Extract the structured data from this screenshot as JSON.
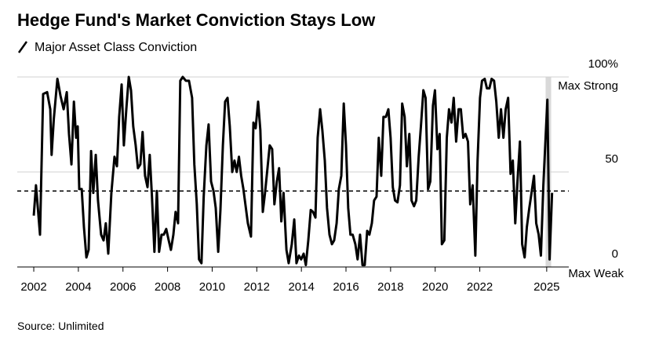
{
  "chart_data": {
    "type": "line",
    "title": "Hedge Fund's Market Conviction Stays Low",
    "source": "Source: Unlimited",
    "annotations": [
      "Max Strong",
      "Max Weak"
    ],
    "x": [
      2002.0,
      2002.1,
      2002.28,
      2002.42,
      2002.6,
      2002.74,
      2002.8,
      2002.9,
      2003.06,
      2003.2,
      2003.34,
      2003.48,
      2003.58,
      2003.69,
      2003.8,
      2003.9,
      2003.97,
      2004.04,
      2004.15,
      2004.25,
      2004.36,
      2004.46,
      2004.57,
      2004.67,
      2004.78,
      2004.88,
      2005.02,
      2005.13,
      2005.23,
      2005.34,
      2005.48,
      2005.62,
      2005.73,
      2005.83,
      2005.94,
      2006.04,
      2006.15,
      2006.26,
      2006.36,
      2006.46,
      2006.57,
      2006.67,
      2006.78,
      2006.88,
      2006.99,
      2007.1,
      2007.2,
      2007.3,
      2007.41,
      2007.52,
      2007.62,
      2007.73,
      2007.83,
      2007.94,
      2008.05,
      2008.15,
      2008.26,
      2008.36,
      2008.47,
      2008.57,
      2008.68,
      2008.82,
      2008.96,
      2009.1,
      2009.2,
      2009.31,
      2009.41,
      2009.52,
      2009.62,
      2009.74,
      2009.84,
      2009.95,
      2010.06,
      2010.16,
      2010.27,
      2010.37,
      2010.48,
      2010.58,
      2010.69,
      2010.79,
      2010.9,
      2011.0,
      2011.1,
      2011.2,
      2011.3,
      2011.4,
      2011.5,
      2011.6,
      2011.74,
      2011.85,
      2011.95,
      2012.06,
      2012.16,
      2012.27,
      2012.37,
      2012.48,
      2012.58,
      2012.69,
      2012.79,
      2012.9,
      2013.0,
      2013.1,
      2013.2,
      2013.33,
      2013.43,
      2013.57,
      2013.68,
      2013.78,
      2013.89,
      2013.99,
      2014.1,
      2014.2,
      2014.31,
      2014.42,
      2014.52,
      2014.63,
      2014.73,
      2014.84,
      2014.94,
      2015.05,
      2015.15,
      2015.26,
      2015.37,
      2015.47,
      2015.58,
      2015.68,
      2015.79,
      2015.9,
      2016.0,
      2016.1,
      2016.2,
      2016.3,
      2016.42,
      2016.52,
      2016.63,
      2016.74,
      2016.84,
      2016.95,
      2017.05,
      2017.16,
      2017.26,
      2017.37,
      2017.47,
      2017.58,
      2017.68,
      2017.79,
      2017.9,
      2018.0,
      2018.1,
      2018.2,
      2018.31,
      2018.42,
      2018.52,
      2018.63,
      2018.73,
      2018.84,
      2018.94,
      2019.05,
      2019.15,
      2019.26,
      2019.36,
      2019.47,
      2019.57,
      2019.68,
      2019.78,
      2019.9,
      2019.99,
      2020.1,
      2020.2,
      2020.3,
      2020.41,
      2020.52,
      2020.62,
      2020.73,
      2020.83,
      2020.94,
      2021.05,
      2021.15,
      2021.26,
      2021.36,
      2021.47,
      2021.57,
      2021.68,
      2021.8,
      2021.9,
      2022.01,
      2022.1,
      2022.22,
      2022.32,
      2022.43,
      2022.53,
      2022.64,
      2022.74,
      2022.85,
      2022.95,
      2023.06,
      2023.16,
      2023.27,
      2023.38,
      2023.48,
      2023.59,
      2023.69,
      2023.8,
      2023.9,
      2024.01,
      2024.11,
      2024.22,
      2024.32,
      2024.43,
      2024.53,
      2024.64,
      2024.74,
      2024.85,
      2024.95,
      2025.03,
      2025.13,
      2025.24
    ],
    "series": [
      {
        "name": "Major Asset Class Conviction",
        "color": "#000000",
        "values": [
          27,
          43,
          17,
          91,
          92,
          83,
          59,
          78,
          99,
          90,
          83,
          92,
          70,
          54,
          87,
          68,
          74,
          41,
          41,
          21,
          5,
          9,
          61,
          39,
          59,
          35,
          17,
          14,
          23,
          7,
          39,
          58,
          53,
          79,
          96,
          64,
          83,
          100,
          93,
          74,
          64,
          52,
          54,
          71,
          48,
          42,
          59,
          37,
          8,
          40,
          8,
          17,
          17,
          20,
          14,
          9,
          17,
          29,
          23,
          98,
          100,
          98,
          98,
          89,
          54,
          33,
          4,
          2,
          37,
          64,
          75,
          45,
          40,
          31,
          8,
          30,
          64,
          87,
          89,
          74,
          50,
          56,
          50,
          58,
          48,
          41,
          32,
          23,
          16,
          76,
          73,
          87,
          72,
          29,
          39,
          52,
          64,
          62,
          33,
          45,
          52,
          24,
          39,
          9,
          2,
          12,
          25,
          2,
          6,
          4,
          7,
          1,
          14,
          30,
          29,
          26,
          68,
          83,
          72,
          56,
          31,
          17,
          12,
          14,
          23,
          41,
          48,
          86,
          64,
          31,
          17,
          17,
          12,
          4,
          17,
          1,
          1,
          19,
          17,
          23,
          35,
          37,
          68,
          48,
          79,
          79,
          83,
          68,
          42,
          35,
          34,
          43,
          86,
          79,
          53,
          70,
          35,
          32,
          35,
          58,
          74,
          93,
          89,
          41,
          45,
          85,
          93,
          62,
          70,
          12,
          14,
          68,
          83,
          76,
          89,
          66,
          83,
          83,
          68,
          70,
          66,
          33,
          43,
          6,
          56,
          89,
          98,
          99,
          94,
          94,
          99,
          98,
          87,
          68,
          83,
          68,
          83,
          89,
          49,
          56,
          23,
          45,
          66,
          12,
          5,
          21,
          31,
          39,
          48,
          23,
          17,
          6,
          43,
          68,
          88,
          4,
          39
        ]
      }
    ],
    "reference_line": 40,
    "shaded_xrange": [
      2024.95,
      2025.2
    ],
    "xlim": [
      2001.26,
      2025.99
    ],
    "xticks": [
      2002,
      2004,
      2006,
      2008,
      2010,
      2012,
      2014,
      2016,
      2018,
      2020,
      2022,
      2025
    ],
    "ylim": [
      0,
      100
    ],
    "yticks": [
      0,
      50,
      {
        "value": 100,
        "label": "100%"
      }
    ],
    "grid": true
  }
}
